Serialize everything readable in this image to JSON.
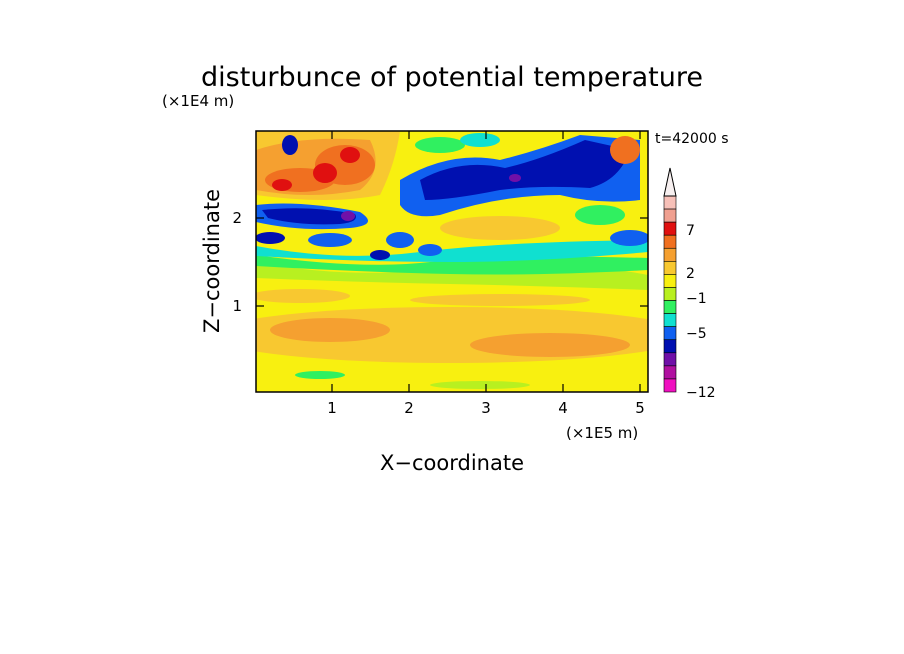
{
  "chart_data": {
    "type": "heatmap",
    "title": "disturbunce of potential temperature",
    "time_label": "t=42000 s",
    "xlabel": "X−coordinate",
    "ylabel": "Z−coordinate",
    "x_unit": "(×1E5 m)",
    "y_unit": "(×1E4 m)",
    "x_ticks": [
      "1",
      "2",
      "3",
      "4",
      "5"
    ],
    "y_ticks": [
      "1",
      "2"
    ],
    "xlim": [
      0,
      5.12
    ],
    "ylim": [
      0,
      2.95
    ],
    "colorbar": {
      "labels": [
        "7",
        "2",
        "−1",
        "−5",
        "−12"
      ],
      "colors_top_to_bottom": [
        "#f7c0b8",
        "#f0a090",
        "#e01010",
        "#f07020",
        "#f5a030",
        "#f8c830",
        "#f8f010",
        "#b8f020",
        "#30f060",
        "#10e0d0",
        "#1060f0",
        "#0010b0",
        "#7010a8",
        "#b010a0",
        "#f010c0"
      ]
    }
  }
}
